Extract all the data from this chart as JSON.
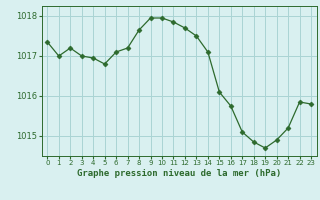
{
  "x": [
    0,
    1,
    2,
    3,
    4,
    5,
    6,
    7,
    8,
    9,
    10,
    11,
    12,
    13,
    14,
    15,
    16,
    17,
    18,
    19,
    20,
    21,
    22,
    23
  ],
  "y": [
    1017.35,
    1017.0,
    1017.2,
    1017.0,
    1016.95,
    1016.8,
    1017.1,
    1017.2,
    1017.65,
    1017.95,
    1017.95,
    1017.85,
    1017.7,
    1017.5,
    1017.1,
    1016.1,
    1015.75,
    1015.1,
    1014.85,
    1014.7,
    1014.9,
    1015.2,
    1015.85,
    1015.8
  ],
  "line_color": "#2d6a2d",
  "marker": "D",
  "marker_size": 2.5,
  "bg_color": "#d9f0f0",
  "grid_color": "#aad4d4",
  "xlabel": "Graphe pression niveau de la mer (hPa)",
  "xlabel_color": "#2d6a2d",
  "tick_color": "#2d6a2d",
  "axis_color": "#2d6a2d",
  "ylim": [
    1014.5,
    1018.25
  ],
  "yticks": [
    1015,
    1016,
    1017,
    1018
  ],
  "xlim": [
    -0.5,
    23.5
  ]
}
